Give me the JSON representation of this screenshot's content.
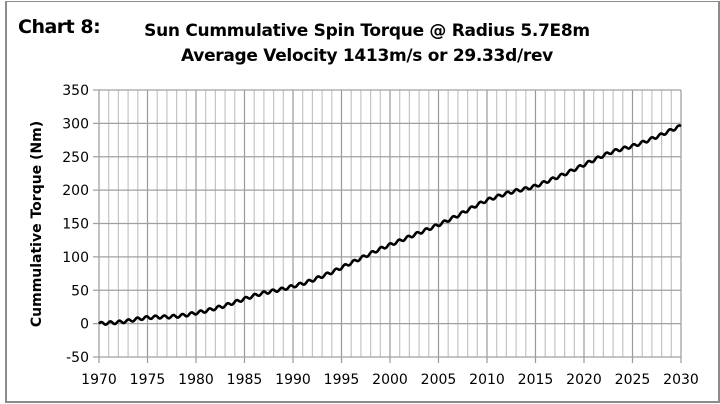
{
  "chart_label": "Chart 8:",
  "chart_data": {
    "type": "line",
    "title": "Sun Cummulative Spin Torque @ Radius 5.7E8m",
    "subtitle": "Average Velocity 1413m/s or 29.33d/rev",
    "xlabel": "",
    "ylabel": "Cummulative Torque (Nm)",
    "xlim": [
      1970,
      2030
    ],
    "ylim": [
      -50,
      350
    ],
    "x_ticks": [
      "1970",
      "1975",
      "1980",
      "1985",
      "1990",
      "1995",
      "2000",
      "2005",
      "2010",
      "2015",
      "2020",
      "2025",
      "2030"
    ],
    "y_ticks": [
      "350",
      "300",
      "250",
      "200",
      "150",
      "100",
      "50",
      "0",
      "-50"
    ],
    "grid": true,
    "legend": "none",
    "line_color": "#000000",
    "oscillation": {
      "period_years": 0.93,
      "amplitude_nm": 2.2
    },
    "series": [
      {
        "name": "Cummulative Torque",
        "x": [
          1970,
          1971,
          1972,
          1973,
          1974,
          1975,
          1976,
          1977,
          1978,
          1979,
          1980,
          1981,
          1982,
          1983,
          1984,
          1985,
          1986,
          1987,
          1988,
          1989,
          1990,
          1991,
          1992,
          1993,
          1994,
          1995,
          1996,
          1997,
          1998,
          1999,
          2000,
          2001,
          2002,
          2003,
          2004,
          2005,
          2006,
          2007,
          2008,
          2009,
          2010,
          2011,
          2012,
          2013,
          2014,
          2015,
          2016,
          2017,
          2018,
          2019,
          2020,
          2021,
          2022,
          2023,
          2024,
          2025,
          2026,
          2027,
          2028,
          2029,
          2030
        ],
        "values": [
          0,
          1,
          2,
          4,
          7,
          9,
          10,
          10,
          11,
          13,
          16,
          19,
          23,
          27,
          32,
          37,
          42,
          46,
          49,
          52,
          56,
          60,
          65,
          71,
          77,
          84,
          91,
          98,
          105,
          112,
          118,
          124,
          130,
          136,
          142,
          148,
          155,
          162,
          170,
          178,
          185,
          190,
          195,
          199,
          202,
          206,
          212,
          218,
          224,
          231,
          238,
          245,
          252,
          258,
          262,
          266,
          271,
          277,
          283,
          290,
          296
        ]
      }
    ]
  }
}
